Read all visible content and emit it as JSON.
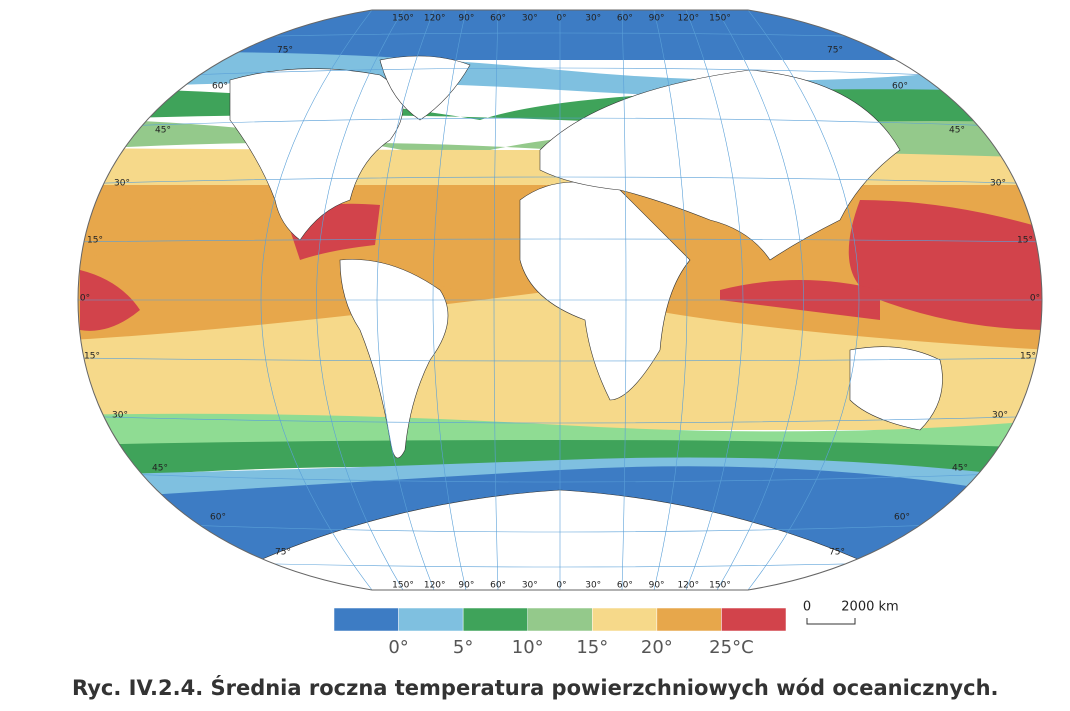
{
  "map": {
    "longitude_labels_top": [
      "150°",
      "120°",
      "90°",
      "60°",
      "30°",
      "0°",
      "30°",
      "60°",
      "90°",
      "120°",
      "150°"
    ],
    "longitude_labels_bottom": [
      "150°",
      "120°",
      "90°",
      "60°",
      "30°",
      "0°",
      "30°",
      "60°",
      "90°",
      "120°",
      "150°"
    ],
    "latitude_labels_left": [
      "75°",
      "60°",
      "45°",
      "30°",
      "15°",
      "0°",
      "15°",
      "30°",
      "45°",
      "60°",
      "75°"
    ],
    "latitude_labels_right": [
      "75°",
      "60°",
      "45°",
      "30°",
      "15°",
      "0°",
      "15°",
      "30°",
      "45°",
      "60°",
      "75°"
    ]
  },
  "legend": {
    "colors": [
      "#3d7cc4",
      "#7fc0e0",
      "#3fa35a",
      "#94c98b",
      "#f6d98a",
      "#e7a74b",
      "#d2434b"
    ],
    "labels": [
      "0°",
      "5°",
      "10°",
      "15°",
      "20°",
      "25°C"
    ]
  },
  "scale": {
    "zero": "0",
    "length": "2000 km"
  },
  "caption": "Ryc. IV.2.4. Średnia roczna temperatura powierzchniowych wód oceanicznych."
}
